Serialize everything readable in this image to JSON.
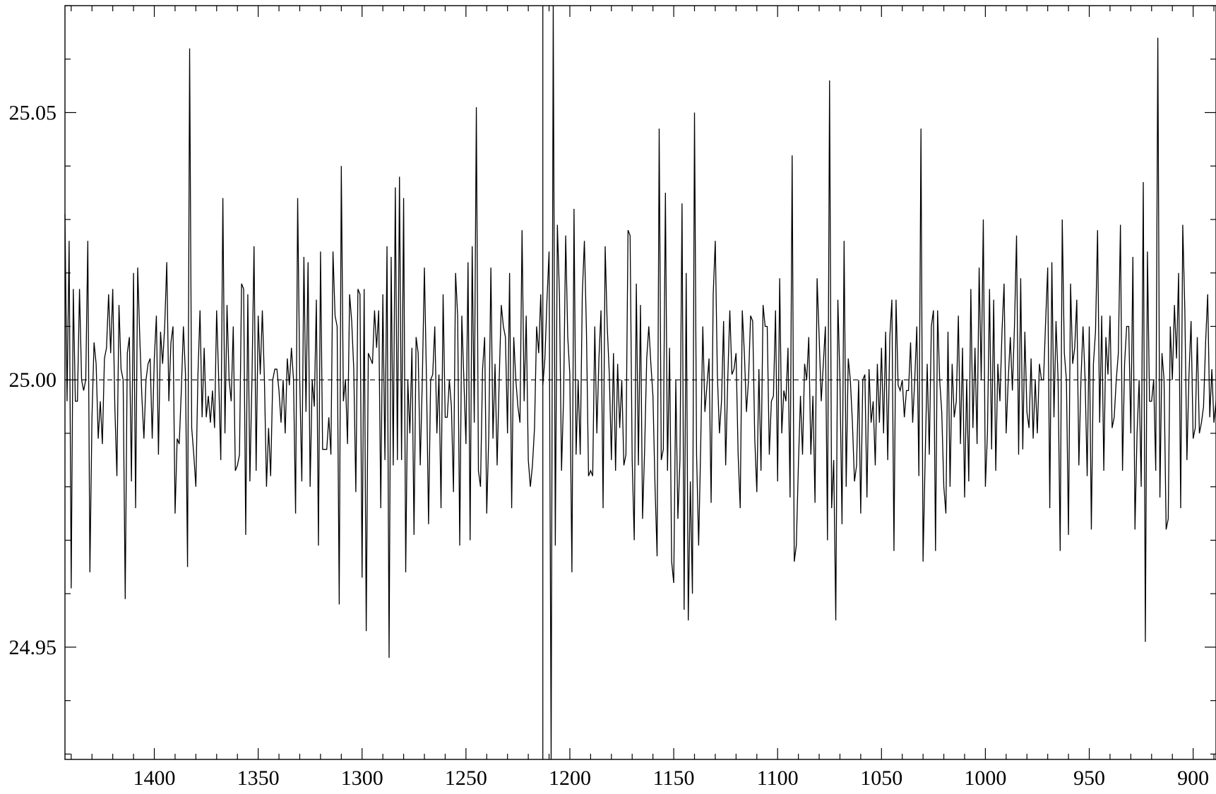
{
  "chart_data": {
    "type": "line",
    "title": "",
    "xlabel": "",
    "ylabel": "",
    "x_reversed": true,
    "xlim": [
      1443,
      889
    ],
    "ylim": [
      24.929,
      25.07
    ],
    "x_ticks": [
      1400,
      1350,
      1300,
      1250,
      1200,
      1150,
      1100,
      1050,
      1000,
      950,
      900
    ],
    "x_tick_labels": [
      "1400",
      "1350",
      "1300",
      "1250",
      "1200",
      "1150",
      "1100",
      "1050",
      "1000",
      "950",
      "900"
    ],
    "x_minor_step": 10,
    "y_ticks": [
      24.95,
      25.0,
      25.05
    ],
    "y_tick_labels": [
      "24.95",
      "25.00",
      "25.05"
    ],
    "y_minor_step": 0.01,
    "reference_line": {
      "y": 25.0,
      "style": "dashed"
    },
    "vertical_marker": {
      "x": 1213
    },
    "grid": false,
    "legend": "none",
    "series": [
      {
        "x_start": 1443,
        "x_step": -1,
        "values": [
          25.031,
          24.996,
          25.026,
          24.961,
          25.017,
          24.996,
          24.996,
          25.017,
          25.0,
          24.998,
          25.0,
          25.026,
          24.964,
          24.993,
          25.007,
          25.003,
          24.989,
          24.996,
          24.988,
          25.004,
          25.006,
          25.016,
          25.005,
          25.017,
          24.995,
          24.982,
          25.014,
          25.002,
          25.0,
          24.959,
          25.005,
          25.008,
          24.981,
          25.02,
          24.976,
          25.021,
          25.008,
          24.997,
          24.989,
          25.0,
          25.003,
          25.004,
          24.989,
          25.004,
          25.012,
          24.986,
          25.009,
          25.003,
          25.01,
          25.022,
          24.996,
          25.007,
          25.01,
          24.975,
          24.989,
          24.988,
          24.998,
          25.01,
          25.001,
          24.965,
          25.062,
          24.991,
          24.986,
          24.98,
          25.001,
          25.013,
          24.993,
          25.006,
          24.993,
          24.997,
          24.992,
          24.998,
          24.991,
          25.013,
          25.0,
          24.985,
          25.034,
          24.99,
          25.014,
          25.0,
          24.996,
          25.01,
          24.983,
          24.984,
          24.986,
          25.018,
          25.017,
          24.971,
          25.016,
          24.981,
          25.0,
          25.025,
          24.983,
          25.012,
          25.001,
          25.013,
          25.0,
          24.98,
          24.991,
          24.982,
          25.0,
          25.002,
          25.002,
          24.998,
          24.992,
          25.0,
          24.99,
          25.004,
          24.999,
          25.006,
          25.0,
          24.975,
          25.034,
          25.0,
          24.981,
          25.023,
          24.994,
          25.022,
          24.98,
          25.0,
          24.995,
          25.015,
          24.969,
          25.024,
          24.987,
          24.987,
          24.987,
          24.993,
          24.986,
          25.024,
          25.012,
          25.01,
          24.958,
          25.04,
          24.996,
          25.0,
          24.988,
          25.016,
          25.011,
          25.002,
          24.979,
          25.017,
          25.016,
          24.963,
          25.017,
          24.953,
          25.005,
          25.004,
          25.003,
          25.013,
          25.006,
          25.013,
          24.976,
          25.016,
          24.985,
          25.025,
          24.948,
          25.023,
          24.984,
          25.036,
          24.985,
          25.038,
          24.985,
          25.034,
          24.964,
          25.0,
          24.99,
          25.006,
          24.971,
          25.008,
          25.005,
          24.984,
          25.0,
          25.021,
          25.0,
          24.973,
          25.0,
          25.001,
          25.01,
          24.99,
          25.001,
          24.976,
          25.016,
          24.993,
          24.993,
          25.0,
          24.995,
          24.979,
          25.02,
          25.012,
          24.969,
          25.012,
          25.0,
          24.988,
          25.022,
          24.97,
          25.025,
          24.992,
          25.051,
          24.983,
          24.98,
          25.002,
          25.008,
          24.975,
          24.99,
          25.021,
          24.989,
          25.003,
          24.984,
          25.0,
          25.014,
          25.01,
          25.008,
          24.99,
          25.02,
          24.976,
          25.008,
          25.0,
          24.995,
          24.992,
          25.028,
          24.996,
          25.012,
          24.985,
          24.98,
          24.984,
          24.991,
          25.01,
          25.005,
          25.016,
          24.999,
          25.004,
          25.015,
          25.024,
          24.929,
          25.07,
          24.969,
          25.029,
          25.016,
          24.983,
          24.997,
          25.027,
          25.008,
          25.001,
          24.964,
          25.032,
          24.986,
          25.0,
          24.986,
          25.016,
          25.026,
          25.009,
          24.982,
          24.983,
          24.982,
          25.01,
          24.99,
          25.004,
          25.013,
          24.976,
          25.025,
          25.01,
          25.001,
          24.985,
          25.005,
          24.983,
          25.003,
          24.991,
          25.0,
          24.984,
          24.986,
          25.028,
          25.027,
          24.985,
          24.97,
          25.018,
          24.984,
          25.014,
          24.974,
          24.987,
          25.004,
          25.01,
          25.003,
          24.997,
          24.98,
          24.967,
          25.047,
          24.985,
          24.987,
          25.035,
          24.983,
          25.006,
          24.966,
          24.962,
          25.0,
          24.974,
          24.985,
          25.033,
          24.957,
          25.02,
          24.955,
          24.981,
          24.96,
          25.05,
          24.986,
          24.969,
          24.988,
          25.01,
          24.994,
          24.999,
          25.004,
          24.977,
          25.016,
          25.026,
          25.001,
          24.99,
          24.996,
          25.011,
          24.984,
          25.0,
          25.013,
          25.001,
          25.002,
          25.005,
          24.986,
          24.976,
          25.013,
          25.005,
          24.994,
          25.0,
          25.012,
          25.011,
          24.989,
          24.979,
          25.002,
          24.983,
          25.014,
          25.01,
          25.01,
          24.986,
          24.996,
          24.997,
          25.013,
          24.981,
          25.019,
          24.99,
          24.998,
          24.996,
          25.006,
          24.978,
          25.042,
          24.966,
          24.969,
          24.984,
          24.997,
          24.986,
          25.003,
          25.0,
          25.008,
          24.986,
          24.997,
          24.977,
          25.019,
          25.008,
          24.996,
          25.003,
          25.01,
          24.97,
          25.056,
          24.976,
          24.985,
          24.955,
          25.015,
          25.0,
          24.973,
          25.026,
          24.98,
          25.004,
          25.0,
          24.992,
          24.981,
          24.984,
          25.0,
          24.975,
          25.0,
          25.001,
          24.978,
          25.002,
          24.992,
          24.996,
          24.984,
          25.003,
          24.992,
          25.006,
          24.99,
          25.009,
          24.985,
          25.008,
          25.015,
          24.968,
          25.015,
          24.999,
          24.998,
          25.0,
          24.993,
          24.998,
          24.998,
          25.007,
          24.992,
          25.0,
          25.01,
          24.982,
          25.047,
          24.966,
          24.985,
          25.003,
          24.986,
          25.01,
          25.013,
          24.968,
          25.013,
          25.0,
          24.994,
          24.98,
          24.975,
          25.009,
          24.98,
          25.003,
          24.993,
          24.996,
          25.012,
          24.988,
          25.006,
          24.978,
          25.0,
          24.981,
          25.017,
          24.991,
          25.006,
          24.988,
          25.021,
          25.0,
          25.03,
          24.98,
          24.99,
          25.017,
          24.987,
          25.015,
          24.983,
          25.003,
          24.996,
          25.009,
          25.018,
          24.99,
          25.0,
          25.008,
          24.998,
          25.01,
          25.027,
          24.986,
          25.019,
          24.987,
          25.009,
          24.994,
          24.991,
          25.004,
          24.989,
          25.0,
          24.99,
          25.003,
          25.0,
          25.0,
          25.011,
          25.021,
          24.976,
          25.022,
          24.993,
          25.011,
          25.0,
          24.968,
          25.03,
          25.005,
          25.0,
          24.971,
          25.018,
          25.003,
          25.006,
          25.015,
          24.984,
          25.0,
          25.01,
          25.0,
          24.982,
          25.01,
          24.972,
          25.003,
          25.009,
          25.028,
          24.992,
          25.012,
          24.983,
          25.008,
          25.001,
          25.012,
          24.991,
          24.993,
          25.0,
          25.005,
          25.029,
          24.983,
          25.003,
          25.01,
          25.01,
          24.99,
          25.023,
          24.972,
          24.99,
          25.0,
          24.98,
          25.037,
          24.951,
          25.024,
          24.996,
          24.996,
          25.0,
          24.983,
          25.064,
          24.978,
          25.005,
          25.0,
          24.972,
          24.974,
          25.01,
          25.0,
          25.014,
          25.004,
          25.02,
          24.976,
          25.029,
          25.013,
          24.985,
          25.001,
          25.011,
          24.989,
          24.991,
          25.008,
          24.99,
          24.992,
          24.995,
          25.007,
          25.016,
          24.993,
          25.002,
          24.992,
          24.996,
          25.004,
          25.01,
          24.981,
          24.988,
          24.998,
          25.026,
          24.987,
          25.0,
          24.992,
          25.003,
          24.99,
          25.01,
          25.007,
          24.992,
          24.999,
          24.997,
          24.98,
          24.996,
          24.994,
          24.995,
          25.0,
          24.995,
          24.99,
          25.007,
          24.998,
          24.978,
          25.012,
          24.987,
          25.011,
          24.97,
          25.006,
          25.02,
          24.981,
          25.008,
          25.012,
          25.016,
          24.986,
          24.992,
          25.01,
          24.983,
          24.962,
          24.979,
          25.013,
          24.995,
          25.0,
          25.005,
          25.0,
          24.99,
          25.005,
          24.996,
          25.008,
          24.99,
          24.998,
          25.003,
          25.002,
          24.992,
          24.99,
          24.996,
          25.017,
          25.001,
          24.995,
          24.989,
          25.002,
          25.01,
          24.981,
          25.0,
          25.007,
          25.005,
          25.01,
          25.015,
          24.97,
          25.016,
          24.99,
          24.998,
          25.003,
          24.987,
          24.993,
          25.0,
          25.005,
          24.996,
          25.016
        ]
      }
    ]
  }
}
